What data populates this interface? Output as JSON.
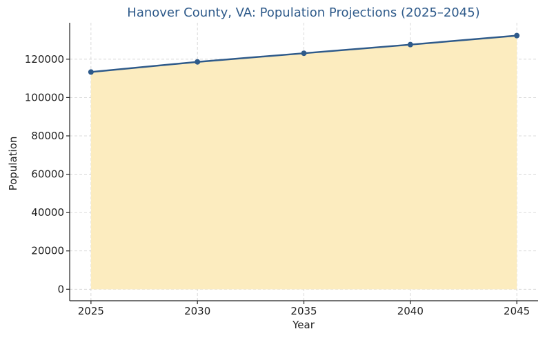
{
  "colors": {
    "line": "#2e5a8a",
    "area": "#fcecbf",
    "grid": "#cfcfcf",
    "axis": "#222222",
    "title": "#2e5a8a"
  },
  "chart_data": {
    "type": "area",
    "title": "Hanover County, VA: Population Projections (2025–2045)",
    "xlabel": "Year",
    "ylabel": "Population",
    "x": [
      2025,
      2030,
      2035,
      2040,
      2045
    ],
    "xticks": [
      "2025",
      "2030",
      "2035",
      "2040",
      "2045"
    ],
    "yticks": [
      "0",
      "20000",
      "40000",
      "60000",
      "80000",
      "100000",
      "120000"
    ],
    "series": [
      {
        "values": [
          113300,
          118600,
          123100,
          127600,
          132300
        ]
      }
    ],
    "xlim": [
      2024,
      2046
    ],
    "ylim": [
      -6000,
      139000
    ],
    "grid": true,
    "marker": "circle"
  }
}
